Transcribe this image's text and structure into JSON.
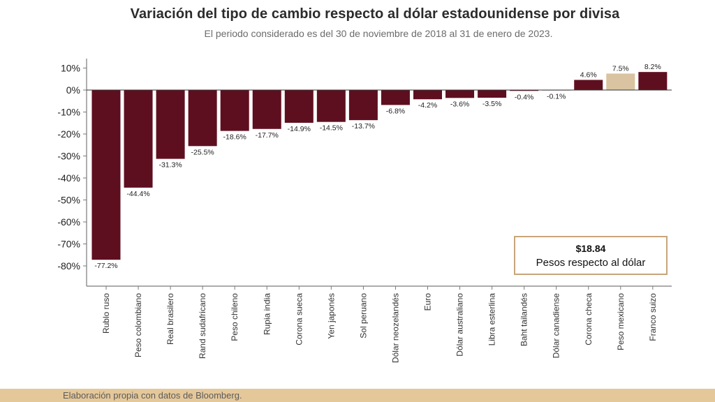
{
  "title": "Variación del tipo de cambio respecto al dólar estadounidense por divisa",
  "subtitle": "El periodo considerado es del 30 de noviembre de 2018 al 31 de enero de 2023.",
  "callout": {
    "amount": "$18.84",
    "description": "Pesos respecto al dólar"
  },
  "footer": {
    "source": "Elaboración propia con datos de Bloomberg."
  },
  "colors": {
    "bar": "#5e0f1f",
    "highlight": "#d9c3a0",
    "axis": "#7a7a7a"
  },
  "chart_data": {
    "type": "bar",
    "title": "Variación del tipo de cambio respecto al dólar estadounidense por divisa",
    "subtitle": "El periodo considerado es del 30 de noviembre de 2018 al 31 de enero de 2023.",
    "xlabel": "",
    "ylabel": "",
    "ylim": [
      -90,
      10
    ],
    "yticks": [
      10,
      0,
      -10,
      -20,
      -30,
      -40,
      -50,
      -60,
      -70,
      -80
    ],
    "ytick_labels": [
      "10%",
      "0%",
      "-10%",
      "-20%",
      "-30%",
      "-40%",
      "-50%",
      "-60%",
      "-70%",
      "-80%"
    ],
    "grid": false,
    "highlight_category": "Peso mexicano",
    "categories": [
      "Rublo ruso",
      "Peso colombiano",
      "Real brasilero",
      "Rand sudafricano",
      "Peso chileno",
      "Rupia india",
      "Corona sueca",
      "Yen japonés",
      "Sol peruano",
      "Dólar neozelandés",
      "Euro",
      "Dólar australiano",
      "Libra esterlina",
      "Baht tailandés",
      "Dólar canadiense",
      "Corona checa",
      "Peso mexicano",
      "Franco suizo"
    ],
    "values": [
      -77.2,
      -44.4,
      -31.3,
      -25.5,
      -18.6,
      -17.7,
      -14.9,
      -14.5,
      -13.7,
      -6.8,
      -4.2,
      -3.6,
      -3.5,
      -0.4,
      -0.1,
      4.6,
      7.5,
      8.2
    ],
    "value_labels": [
      "-77.2%",
      "-44.4%",
      "-31.3%",
      "-25.5%",
      "-18.6%",
      "-17.7%",
      "-14.9%",
      "-14.5%",
      "-13.7%",
      "-6.8%",
      "-4.2%",
      "-3.6%",
      "-3.5%",
      "-0.4%",
      "-0.1%",
      "4.6%",
      "7.5%",
      "8.2%"
    ]
  }
}
